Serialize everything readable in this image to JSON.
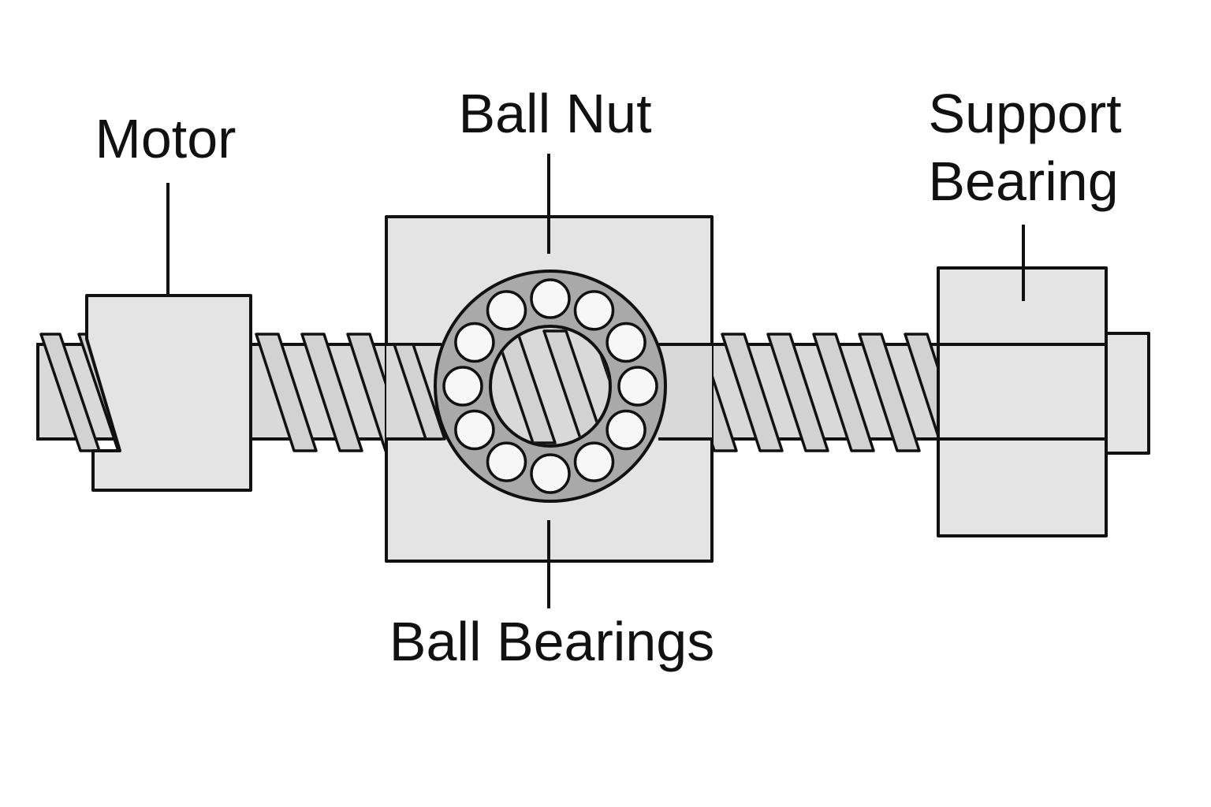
{
  "labels": {
    "motor": "Motor",
    "ball_nut": "Ball Nut",
    "support_bearing_line1": "Support",
    "support_bearing_line2": "Bearing",
    "ball_bearings": "Ball Bearings"
  },
  "colors": {
    "outline": "#111111",
    "part_fill": "#e4e4e4",
    "shaft_fill": "#d9d9d9",
    "ring_fill": "#a9a9a9",
    "ball_fill": "#f7f7f7",
    "background": "#ffffff"
  },
  "ball_count": 12
}
